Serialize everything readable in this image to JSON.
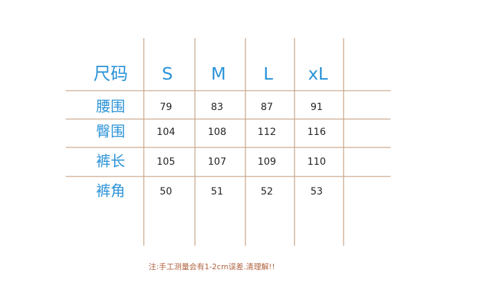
{
  "table": {
    "header": [
      "尺码",
      "S",
      "M",
      "L",
      "xL"
    ],
    "rows": [
      [
        "腰围",
        79,
        83,
        87,
        91
      ],
      [
        "臀围",
        104,
        108,
        112,
        116
      ],
      [
        "裤长",
        105,
        107,
        109,
        110
      ],
      [
        "裤角",
        50,
        51,
        52,
        53
      ]
    ]
  },
  "note": "注:手工测量会有1-2cm误差.清理解!!"
}
